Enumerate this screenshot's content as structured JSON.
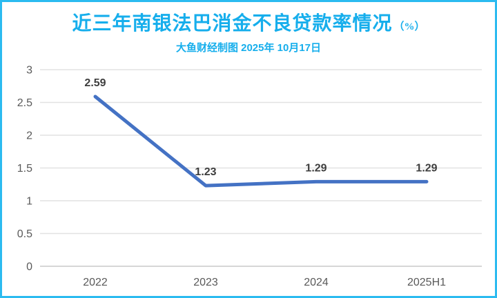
{
  "title": {
    "text": "近三年南银法巴消金不良贷款率情况",
    "unit": "（%）"
  },
  "subtitle": "大鱼财经制图 2025年 10月17日",
  "colors": {
    "background": "#ffffff",
    "accent": "#16aeec",
    "border": "#2bbbf0",
    "line": "#4472c4",
    "grid": "#e2e2e2",
    "axis": "#c9c9c9",
    "tick_text": "#595959",
    "label_text": "#3d3d3d"
  },
  "chart_data": {
    "type": "line",
    "title": "近三年南银法巴消金不良贷款率情况（%）",
    "subtitle": "大鱼财经制图 2025年 10月17日",
    "categories": [
      "2022",
      "2023",
      "2024",
      "2025H1"
    ],
    "values": [
      2.59,
      1.23,
      1.29,
      1.29
    ],
    "data_labels": [
      "2.59",
      "1.23",
      "1.29",
      "1.29"
    ],
    "yticks": [
      0,
      0.5,
      1,
      1.5,
      2,
      2.5,
      3
    ],
    "ytick_labels": [
      "0",
      "0.5",
      "1",
      "1.5",
      "2",
      "2.5",
      "3"
    ],
    "ylim": [
      0,
      3
    ],
    "xlabel": "",
    "ylabel": "",
    "grid": true,
    "legend": false,
    "line_width": 5,
    "marker": "none"
  }
}
